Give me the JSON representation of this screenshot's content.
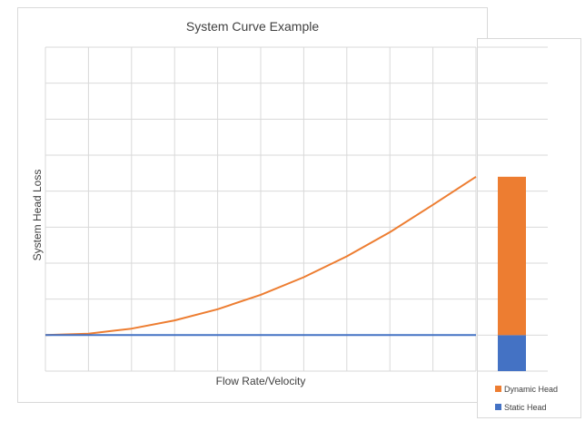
{
  "chart_data": [
    {
      "type": "line",
      "title": "System Curve Example",
      "xlabel": "Flow Rate/Velocity",
      "ylabel": "System Head Loss",
      "x": [
        0,
        1,
        2,
        3,
        4,
        5,
        6,
        7,
        8,
        9,
        10
      ],
      "xlim": [
        0,
        10
      ],
      "ylim": [
        -1,
        8
      ],
      "grid": true,
      "legend": "none",
      "series": [
        {
          "values": [
            0,
            0.04,
            0.18,
            0.41,
            0.72,
            1.12,
            1.61,
            2.19,
            2.86,
            3.62,
            4.4
          ],
          "color": "#ED7D31"
        },
        {
          "values": [
            0,
            0,
            0,
            0,
            0,
            0,
            0,
            0,
            0,
            0,
            0
          ],
          "color": "#4472C4"
        }
      ]
    },
    {
      "type": "bar",
      "stacked": true,
      "categories": [
        ""
      ],
      "ylim": [
        -1,
        8
      ],
      "grid": true,
      "legend": "bottom",
      "series": [
        {
          "name": "Static Head",
          "values": [
            1
          ],
          "color": "#4472C4"
        },
        {
          "name": "Dynamic Head",
          "values": [
            4.4
          ],
          "color": "#ED7D31"
        }
      ]
    }
  ]
}
